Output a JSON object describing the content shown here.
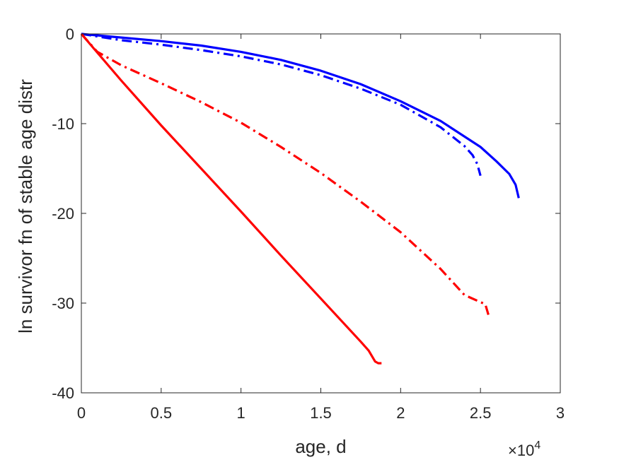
{
  "chart_data": {
    "type": "line",
    "title": "",
    "xlabel": "age, d",
    "ylabel": "ln survivor fn of stable age distr",
    "x_multiplier_label": "×10",
    "x_multiplier_exponent": "4",
    "xlim": [
      0,
      3
    ],
    "ylim": [
      -40,
      0
    ],
    "xticks": [
      0,
      0.5,
      1,
      1.5,
      2,
      2.5,
      3
    ],
    "xtick_labels": [
      "0",
      "0.5",
      "1",
      "1.5",
      "2",
      "2.5",
      "3"
    ],
    "yticks": [
      0,
      -10,
      -20,
      -30,
      -40
    ],
    "ytick_labels": [
      "0",
      "-10",
      "-20",
      "-30",
      "-40"
    ],
    "grid": false,
    "series": [
      {
        "color": "#0000ff",
        "style": "solid",
        "x": [
          0,
          0.25,
          0.5,
          0.75,
          1.0,
          1.25,
          1.5,
          1.75,
          2.0,
          2.25,
          2.5,
          2.6,
          2.68,
          2.72,
          2.74
        ],
        "y": [
          0,
          -0.4,
          -0.8,
          -1.3,
          -2.0,
          -2.9,
          -4.1,
          -5.6,
          -7.5,
          -9.7,
          -12.6,
          -14.2,
          -15.6,
          -16.8,
          -18.3
        ]
      },
      {
        "color": "#0000ff",
        "style": "dashdot",
        "x": [
          0,
          0.25,
          0.5,
          0.75,
          1.0,
          1.25,
          1.5,
          1.75,
          2.0,
          2.25,
          2.4,
          2.45,
          2.48,
          2.5
        ],
        "y": [
          0,
          -0.7,
          -1.2,
          -1.8,
          -2.5,
          -3.4,
          -4.6,
          -6.1,
          -7.9,
          -10.4,
          -12.5,
          -13.5,
          -14.5,
          -15.8
        ]
      },
      {
        "color": "#ff0000",
        "style": "solid",
        "x": [
          0,
          0.25,
          0.5,
          0.75,
          1.0,
          1.25,
          1.5,
          1.75,
          1.8,
          1.84,
          1.86,
          1.88
        ],
        "y": [
          0,
          -5.2,
          -10.2,
          -15.0,
          -19.8,
          -24.7,
          -29.5,
          -34.3,
          -35.3,
          -36.5,
          -36.7,
          -36.7
        ]
      },
      {
        "color": "#ff0000",
        "style": "dashdot",
        "x": [
          0,
          0.1,
          0.25,
          0.5,
          0.75,
          1.0,
          1.25,
          1.5,
          1.75,
          2.0,
          2.25,
          2.4,
          2.45,
          2.5,
          2.53,
          2.55
        ],
        "y": [
          0,
          -2.0,
          -3.5,
          -5.5,
          -7.6,
          -9.9,
          -12.6,
          -15.5,
          -18.7,
          -22.1,
          -26.2,
          -29.1,
          -29.5,
          -29.9,
          -30.1,
          -31.3
        ]
      }
    ]
  }
}
